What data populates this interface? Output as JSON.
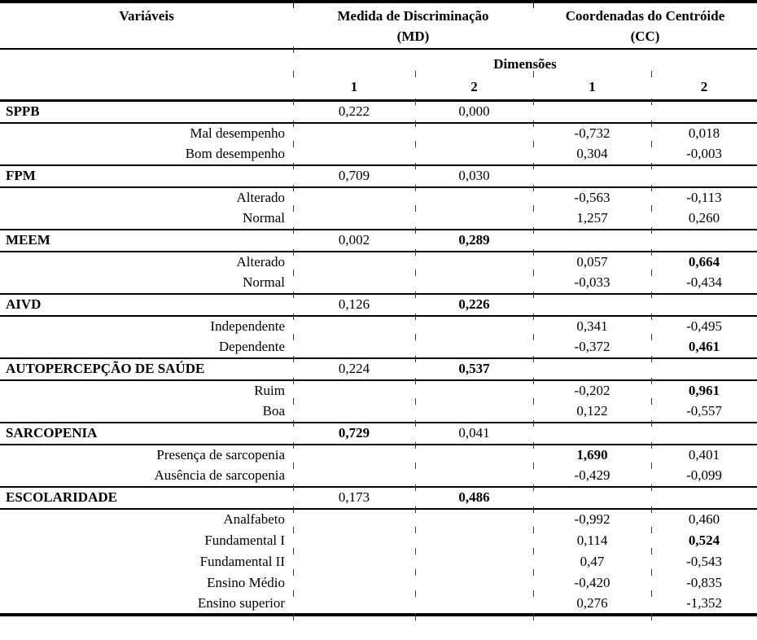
{
  "table": {
    "header": {
      "variables": "Variáveis",
      "md_title": "Medida de Discriminação",
      "md_abbr": "(MD)",
      "cc_title": "Coordenadas do Centróide",
      "cc_abbr": "(CC)",
      "dimensions": "Dimensões",
      "dim_columns": [
        "1",
        "2",
        "1",
        "2"
      ]
    },
    "rows": [
      {
        "label": "SPPB",
        "kind": "variable",
        "values": [
          {
            "text": "0,222"
          },
          {
            "text": "0,000"
          },
          null,
          null
        ]
      },
      {
        "label": "Mal desempenho",
        "kind": "category",
        "values": [
          null,
          null,
          {
            "text": "-0,732"
          },
          {
            "text": "0,018"
          }
        ]
      },
      {
        "label": "Bom desempenho",
        "kind": "category",
        "values": [
          null,
          null,
          {
            "text": "0,304"
          },
          {
            "text": "-0,003"
          }
        ]
      },
      {
        "label": "FPM",
        "kind": "variable",
        "values": [
          {
            "text": "0,709"
          },
          {
            "text": "0,030"
          },
          null,
          null
        ]
      },
      {
        "label": "Alterado",
        "kind": "category",
        "values": [
          null,
          null,
          {
            "text": "-0,563"
          },
          {
            "text": "-0,113"
          }
        ]
      },
      {
        "label": "Normal",
        "kind": "category",
        "values": [
          null,
          null,
          {
            "text": "1,257"
          },
          {
            "text": "0,260"
          }
        ]
      },
      {
        "label": "MEEM",
        "kind": "variable",
        "values": [
          {
            "text": "0,002"
          },
          {
            "text": "0,289",
            "bold": true
          },
          null,
          null
        ]
      },
      {
        "label": "Alterado",
        "kind": "category",
        "values": [
          null,
          null,
          {
            "text": "0,057"
          },
          {
            "text": "0,664",
            "bold": true
          }
        ]
      },
      {
        "label": "Normal",
        "kind": "category",
        "values": [
          null,
          null,
          {
            "text": "-0,033"
          },
          {
            "text": "-0,434"
          }
        ]
      },
      {
        "label": "AIVD",
        "kind": "variable",
        "values": [
          {
            "text": "0,126"
          },
          {
            "text": "0,226",
            "bold": true
          },
          null,
          null
        ]
      },
      {
        "label": "Independente",
        "kind": "category",
        "values": [
          null,
          null,
          {
            "text": "0,341"
          },
          {
            "text": "-0,495"
          }
        ]
      },
      {
        "label": "Dependente",
        "kind": "category",
        "values": [
          null,
          null,
          {
            "text": "-0,372"
          },
          {
            "text": "0,461",
            "bold": true
          }
        ]
      },
      {
        "label": "AUTOPERCEPÇÃO DE SAÚDE",
        "kind": "variable",
        "values": [
          {
            "text": "0,224"
          },
          {
            "text": "0,537",
            "bold": true
          },
          null,
          null
        ]
      },
      {
        "label": "Ruim",
        "kind": "category",
        "values": [
          null,
          null,
          {
            "text": "-0,202"
          },
          {
            "text": "0,961",
            "bold": true
          }
        ]
      },
      {
        "label": "Boa",
        "kind": "category",
        "values": [
          null,
          null,
          {
            "text": "0,122"
          },
          {
            "text": "-0,557"
          }
        ]
      },
      {
        "label": "SARCOPENIA",
        "kind": "variable",
        "values": [
          {
            "text": "0,729",
            "bold": true
          },
          {
            "text": "0,041"
          },
          null,
          null
        ]
      },
      {
        "label": "Presença de sarcopenia",
        "kind": "category",
        "values": [
          null,
          null,
          {
            "text": "1,690",
            "bold": true
          },
          {
            "text": "0,401"
          }
        ]
      },
      {
        "label": "Ausência de sarcopenia",
        "kind": "category",
        "values": [
          null,
          null,
          {
            "text": "-0,429"
          },
          {
            "text": "-0,099"
          }
        ]
      },
      {
        "label": "ESCOLARIDADE",
        "kind": "variable",
        "values": [
          {
            "text": "0,173"
          },
          {
            "text": "0,486",
            "bold": true
          },
          null,
          null
        ]
      },
      {
        "label": "Analfabeto",
        "kind": "category",
        "values": [
          null,
          null,
          {
            "text": "-0,992"
          },
          {
            "text": "0,460"
          }
        ]
      },
      {
        "label": "Fundamental I",
        "kind": "category",
        "values": [
          null,
          null,
          {
            "text": "0,114"
          },
          {
            "text": "0,524",
            "bold": true
          }
        ]
      },
      {
        "label": "Fundamental II",
        "kind": "category",
        "values": [
          null,
          null,
          {
            "text": "0,47"
          },
          {
            "text": "-0,543"
          }
        ]
      },
      {
        "label": "Ensino Médio",
        "kind": "category",
        "values": [
          null,
          null,
          {
            "text": "-0,420"
          },
          {
            "text": "-0,835"
          }
        ]
      },
      {
        "label": "Ensino superior",
        "kind": "category",
        "values": [
          null,
          null,
          {
            "text": "0,276"
          },
          {
            "text": "-1,352"
          }
        ]
      }
    ]
  }
}
